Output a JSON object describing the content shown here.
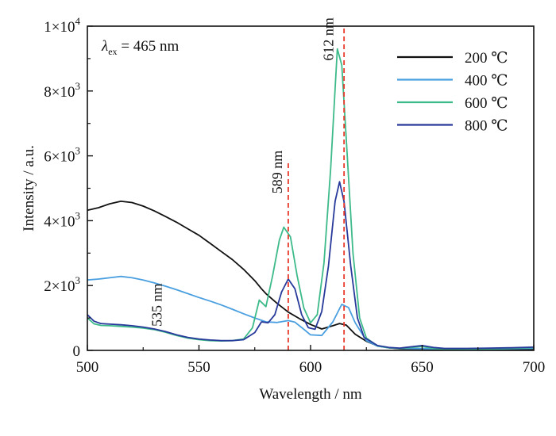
{
  "chart_data": {
    "type": "line",
    "xlabel": "Wavelength / nm",
    "ylabel": "Intensity / a.u.",
    "xlim": [
      500,
      700
    ],
    "ylim": [
      0,
      10000
    ],
    "x_ticks": [
      500,
      550,
      600,
      650,
      700
    ],
    "x_tick_labels": [
      "500",
      "550",
      "600",
      "650",
      "700"
    ],
    "y_ticks": [
      0,
      2000,
      4000,
      6000,
      8000,
      10000
    ],
    "y_tick_labels": [
      {
        "base": "0",
        "exp": ""
      },
      {
        "base": "2×10",
        "exp": "3"
      },
      {
        "base": "4×10",
        "exp": "3"
      },
      {
        "base": "6×10",
        "exp": "3"
      },
      {
        "base": "8×10",
        "exp": "3"
      },
      {
        "base": "1×10",
        "exp": "4"
      }
    ],
    "grid": false,
    "legend_position": "top-right",
    "excitation_label": {
      "symbol": "λ",
      "sub": "ex",
      "text": " = 465 nm"
    },
    "annotations": [
      {
        "text": "535 nm",
        "x": 535,
        "y": 1400
      },
      {
        "text": "589 nm",
        "x": 589,
        "y": 5500
      },
      {
        "text": "612 nm",
        "x": 612,
        "y": 9600
      }
    ],
    "reference_lines": [
      {
        "x": 590,
        "y_range": [
          0,
          5800
        ],
        "color": "#e8392a"
      },
      {
        "x": 615,
        "y_range": [
          0,
          10000
        ],
        "color": "#e8392a"
      }
    ],
    "series": [
      {
        "name": "200 ℃",
        "color": "#111111",
        "points": [
          [
            500,
            4320
          ],
          [
            505,
            4400
          ],
          [
            510,
            4520
          ],
          [
            515,
            4600
          ],
          [
            520,
            4560
          ],
          [
            525,
            4450
          ],
          [
            530,
            4300
          ],
          [
            535,
            4130
          ],
          [
            540,
            3950
          ],
          [
            545,
            3750
          ],
          [
            550,
            3550
          ],
          [
            555,
            3300
          ],
          [
            560,
            3050
          ],
          [
            565,
            2800
          ],
          [
            570,
            2500
          ],
          [
            575,
            2150
          ],
          [
            578,
            1900
          ],
          [
            580,
            1750
          ],
          [
            585,
            1450
          ],
          [
            590,
            1180
          ],
          [
            595,
            980
          ],
          [
            600,
            800
          ],
          [
            605,
            660
          ],
          [
            610,
            760
          ],
          [
            613,
            830
          ],
          [
            616,
            780
          ],
          [
            620,
            500
          ],
          [
            625,
            280
          ],
          [
            630,
            140
          ],
          [
            635,
            80
          ],
          [
            640,
            50
          ],
          [
            650,
            40
          ],
          [
            660,
            30
          ],
          [
            670,
            25
          ],
          [
            680,
            25
          ],
          [
            690,
            25
          ],
          [
            700,
            30
          ]
        ]
      },
      {
        "name": "400 ℃",
        "color": "#4a9fe0",
        "points": [
          [
            500,
            2170
          ],
          [
            505,
            2200
          ],
          [
            510,
            2240
          ],
          [
            515,
            2280
          ],
          [
            520,
            2240
          ],
          [
            525,
            2170
          ],
          [
            530,
            2080
          ],
          [
            535,
            1980
          ],
          [
            540,
            1870
          ],
          [
            545,
            1750
          ],
          [
            550,
            1630
          ],
          [
            555,
            1520
          ],
          [
            560,
            1400
          ],
          [
            565,
            1270
          ],
          [
            570,
            1130
          ],
          [
            575,
            1000
          ],
          [
            580,
            880
          ],
          [
            585,
            860
          ],
          [
            590,
            920
          ],
          [
            593,
            870
          ],
          [
            597,
            650
          ],
          [
            600,
            480
          ],
          [
            605,
            460
          ],
          [
            610,
            880
          ],
          [
            614,
            1420
          ],
          [
            617,
            1320
          ],
          [
            620,
            850
          ],
          [
            625,
            300
          ],
          [
            630,
            130
          ],
          [
            635,
            80
          ],
          [
            640,
            60
          ],
          [
            650,
            55
          ],
          [
            660,
            40
          ],
          [
            670,
            35
          ],
          [
            680,
            40
          ],
          [
            690,
            50
          ],
          [
            700,
            60
          ]
        ]
      },
      {
        "name": "600 ℃",
        "color": "#3dba8a",
        "points": [
          [
            500,
            1000
          ],
          [
            503,
            820
          ],
          [
            506,
            770
          ],
          [
            510,
            760
          ],
          [
            515,
            740
          ],
          [
            520,
            720
          ],
          [
            525,
            690
          ],
          [
            530,
            640
          ],
          [
            535,
            560
          ],
          [
            540,
            460
          ],
          [
            545,
            380
          ],
          [
            550,
            330
          ],
          [
            555,
            300
          ],
          [
            560,
            290
          ],
          [
            565,
            300
          ],
          [
            570,
            350
          ],
          [
            574,
            700
          ],
          [
            577,
            1550
          ],
          [
            580,
            1350
          ],
          [
            583,
            2300
          ],
          [
            586,
            3400
          ],
          [
            588,
            3800
          ],
          [
            591,
            3500
          ],
          [
            594,
            2300
          ],
          [
            597,
            1300
          ],
          [
            600,
            850
          ],
          [
            603,
            1100
          ],
          [
            606,
            2700
          ],
          [
            609,
            5600
          ],
          [
            612,
            9300
          ],
          [
            614,
            8800
          ],
          [
            616,
            6500
          ],
          [
            619,
            3000
          ],
          [
            622,
            1000
          ],
          [
            625,
            380
          ],
          [
            630,
            140
          ],
          [
            635,
            80
          ],
          [
            640,
            60
          ],
          [
            650,
            120
          ],
          [
            655,
            60
          ],
          [
            660,
            40
          ],
          [
            670,
            40
          ],
          [
            680,
            50
          ],
          [
            690,
            60
          ],
          [
            700,
            90
          ]
        ]
      },
      {
        "name": "800 ℃",
        "color": "#27399a",
        "points": [
          [
            500,
            1100
          ],
          [
            503,
            900
          ],
          [
            506,
            830
          ],
          [
            510,
            810
          ],
          [
            515,
            790
          ],
          [
            520,
            760
          ],
          [
            525,
            720
          ],
          [
            530,
            660
          ],
          [
            535,
            580
          ],
          [
            540,
            480
          ],
          [
            545,
            400
          ],
          [
            550,
            350
          ],
          [
            555,
            320
          ],
          [
            560,
            300
          ],
          [
            565,
            300
          ],
          [
            570,
            330
          ],
          [
            575,
            550
          ],
          [
            578,
            880
          ],
          [
            581,
            850
          ],
          [
            584,
            1100
          ],
          [
            587,
            1800
          ],
          [
            590,
            2200
          ],
          [
            593,
            1900
          ],
          [
            596,
            1100
          ],
          [
            599,
            700
          ],
          [
            602,
            650
          ],
          [
            605,
            1200
          ],
          [
            608,
            2600
          ],
          [
            611,
            4600
          ],
          [
            613,
            5200
          ],
          [
            615,
            4600
          ],
          [
            618,
            2600
          ],
          [
            621,
            1000
          ],
          [
            624,
            400
          ],
          [
            630,
            150
          ],
          [
            635,
            90
          ],
          [
            640,
            70
          ],
          [
            650,
            150
          ],
          [
            655,
            90
          ],
          [
            660,
            60
          ],
          [
            670,
            60
          ],
          [
            680,
            70
          ],
          [
            690,
            80
          ],
          [
            700,
            100
          ]
        ]
      }
    ]
  }
}
